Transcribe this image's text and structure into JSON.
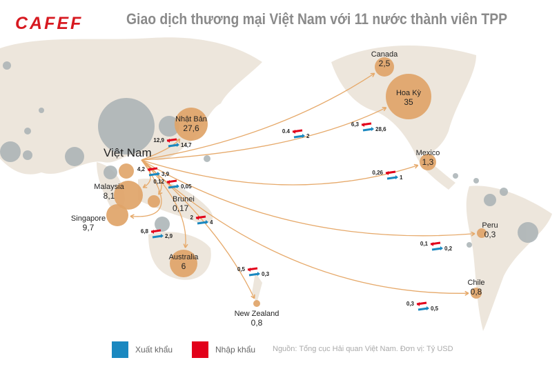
{
  "header": {
    "logo": "CAFEF",
    "title": "Giao dịch thương mại Việt Nam với 11 nước thành viên TPP"
  },
  "origin": {
    "name": "Việt Nam"
  },
  "colors": {
    "export": "#1a88c0",
    "import": "#e2001a",
    "bubble": "#e0a468",
    "arc": "#e6a96a",
    "land": "#ede6dc",
    "other": "#a9b2b5"
  },
  "countries": [
    {
      "id": "japan",
      "name": "Nhật Bản",
      "total": "27,6",
      "export": "14,7",
      "import": "12,9"
    },
    {
      "id": "canada",
      "name": "Canada",
      "total": "2,5",
      "export": "2",
      "import": "0.4"
    },
    {
      "id": "usa",
      "name": "Hoa Kỳ",
      "total": "35",
      "export": "28,6",
      "import": "6,3"
    },
    {
      "id": "mexico",
      "name": "Mexico",
      "total": "1,3",
      "export": "1",
      "import": "0,26"
    },
    {
      "id": "peru",
      "name": "Peru",
      "total": "0,3",
      "export": "0,2",
      "import": "0,1"
    },
    {
      "id": "chile",
      "name": "Chile",
      "total": "0,8",
      "export": "0,5",
      "import": "0,3"
    },
    {
      "id": "nz",
      "name": "New Zealand",
      "total": "0,8",
      "export": "0,3",
      "import": "0,5"
    },
    {
      "id": "australia",
      "name": "Australia",
      "total": "6",
      "export": "4",
      "import": "2"
    },
    {
      "id": "malaysia",
      "name": "Malaysia",
      "total": "8,1",
      "export": "3,9",
      "import": "4,2"
    },
    {
      "id": "brunei",
      "name": "Brunei",
      "total": "0,17",
      "export": "0,05",
      "import": "0,12"
    },
    {
      "id": "singapore",
      "name": "Singapore",
      "total": "9,7",
      "export": "2,9",
      "import": "6,8"
    }
  ],
  "legend": {
    "export": "Xuất khẩu",
    "import": "Nhập khẩu"
  },
  "source": "Nguồn: Tổng cục Hải quan Việt Nam. Đơn vị: Tỷ USD"
}
